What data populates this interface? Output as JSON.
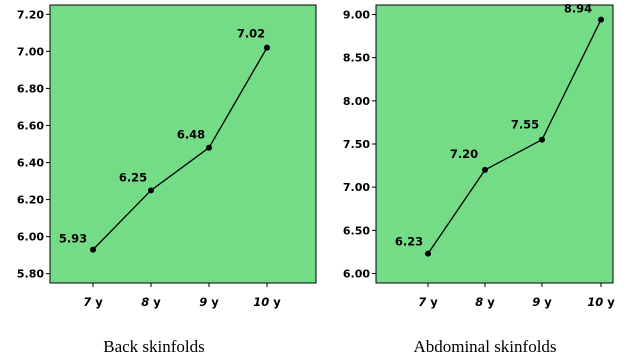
{
  "colors": {
    "plot_bg": "#74dc86",
    "line": "#000000"
  },
  "chart_data": [
    {
      "type": "line",
      "title": "",
      "caption": "Back skinfolds",
      "categories": [
        {
          "num": "7",
          "unit": "y"
        },
        {
          "num": "8",
          "unit": "y"
        },
        {
          "num": "9",
          "unit": "y"
        },
        {
          "num": "10",
          "unit": "y"
        }
      ],
      "values": [
        5.93,
        6.25,
        6.48,
        7.02
      ],
      "data_labels": [
        "5.93",
        "6.25",
        "6.48",
        "7.02"
      ],
      "ylim": [
        5.75,
        7.25
      ],
      "y_ticks": [
        "5.80",
        "6.00",
        "6.20",
        "6.40",
        "6.60",
        "6.80",
        "7.00",
        "7.20"
      ],
      "grid": false,
      "legend": "none"
    },
    {
      "type": "line",
      "title": "",
      "caption": "Abdominal skinfolds",
      "categories": [
        {
          "num": "7",
          "unit": "y"
        },
        {
          "num": "8",
          "unit": "y"
        },
        {
          "num": "9",
          "unit": "y"
        },
        {
          "num": "10",
          "unit": "y"
        }
      ],
      "values": [
        6.23,
        7.2,
        7.55,
        8.94
      ],
      "data_labels": [
        "6.23",
        "7.20",
        "7.55",
        "8.94"
      ],
      "ylim": [
        5.89,
        9.11
      ],
      "y_ticks": [
        "6.00",
        "6.50",
        "7.00",
        "7.50",
        "8.00",
        "8.50",
        "9.00"
      ],
      "grid": false,
      "legend": "none"
    }
  ]
}
